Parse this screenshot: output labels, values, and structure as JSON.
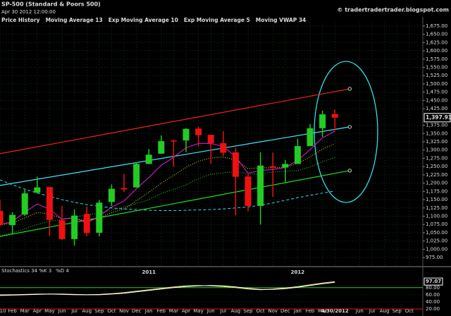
{
  "chart_data": {
    "type": "candlestick",
    "title": "SP-500 (Standard & Poors 500)",
    "subtitle": "Apr 30 2012 12:00:00",
    "credit": "© tradertradertrader.blogspot.com",
    "legend": [
      {
        "name": "Price History",
        "color": "#ffffff"
      },
      {
        "name": "Moving Average 13",
        "color": "#22dd22"
      },
      {
        "name": "Exp Moving Average 10",
        "color": "#e8e020"
      },
      {
        "name": "Exp Moving Average 5",
        "color": "#e020e0"
      },
      {
        "name": "Moving VWAP 34",
        "color": "#30e0f0"
      }
    ],
    "x_labels": [
      "10",
      "Feb",
      "Mar",
      "Apr",
      "May",
      "Jun",
      "Jul",
      "Aug",
      "Sep",
      "Oct",
      "Nov",
      "Dec",
      "Jan",
      "Feb",
      "Mar",
      "Apr",
      "May",
      "Jun",
      "Jul",
      "Aug",
      "Sep",
      "Oct",
      "Nov",
      "Dec",
      "Jan",
      "Feb",
      "Mar",
      "4/30/2012",
      null,
      "Jun",
      "Jul",
      "Aug",
      "Sep",
      "Oct"
    ],
    "year_labels": [
      {
        "category_index": 12,
        "label": "2011"
      },
      {
        "category_index": 24,
        "label": "2012"
      }
    ],
    "up_color": "#22cc22",
    "down_color": "#ee1111",
    "open": [
      1116,
      1073,
      1105,
      1171,
      1188,
      1088,
      1031,
      1107,
      1050,
      1143,
      1185,
      1187,
      1258,
      1289,
      1329,
      1329,
      1365,
      1346,
      1321,
      1293,
      1220,
      1131,
      1251,
      1247,
      1258,
      1312,
      1366,
      1409
    ],
    "high": [
      1150,
      1112,
      1180,
      1220,
      1188,
      1131,
      1120,
      1129,
      1149,
      1196,
      1228,
      1263,
      1303,
      1344,
      1332,
      1366,
      1371,
      1346,
      1357,
      1307,
      1230,
      1293,
      1292,
      1270,
      1334,
      1378,
      1419,
      1422
    ],
    "low": [
      1071,
      1045,
      1101,
      1170,
      1040,
      1028,
      1011,
      1040,
      1039,
      1131,
      1173,
      1187,
      1257,
      1289,
      1249,
      1294,
      1311,
      1258,
      1282,
      1102,
      1115,
      1075,
      1159,
      1203,
      1258,
      1312,
      1340,
      1358
    ],
    "close": [
      1074,
      1104,
      1169,
      1187,
      1089,
      1031,
      1102,
      1049,
      1141,
      1183,
      1181,
      1258,
      1286,
      1327,
      1326,
      1364,
      1345,
      1321,
      1292,
      1219,
      1131,
      1253,
      1247,
      1258,
      1312,
      1366,
      1408,
      1398
    ],
    "series": [
      {
        "name": "Moving Average 13",
        "color": "#22dd22",
        "dash": "1,2",
        "values": [
          1040,
          1050,
          1062,
          1075,
          1085,
          1090,
          1098,
          1103,
          1110,
          1118,
          1128,
          1138,
          1150,
          1169,
          1181,
          1195,
          1214,
          1227,
          1231,
          1235,
          1228,
          1228,
          1234,
          1236,
          1238,
          1249,
          1265,
          1278
        ]
      },
      {
        "name": "Exp Moving Average 10",
        "color": "#e8e020",
        "dash": "1,2",
        "values": [
          1074,
          1079,
          1095,
          1111,
          1107,
          1092,
          1094,
          1085,
          1095,
          1111,
          1122,
          1147,
          1172,
          1200,
          1223,
          1248,
          1266,
          1276,
          1279,
          1270,
          1244,
          1246,
          1246,
          1248,
          1260,
          1279,
          1303,
          1319
        ]
      },
      {
        "name": "Exp Moving Average 5",
        "color": "#e020e0",
        "dash": "",
        "values": [
          1074,
          1084,
          1112,
          1137,
          1121,
          1091,
          1095,
          1080,
          1100,
          1128,
          1146,
          1183,
          1217,
          1254,
          1278,
          1307,
          1320,
          1320,
          1311,
          1280,
          1230,
          1238,
          1241,
          1247,
          1269,
          1301,
          1337,
          1357
        ]
      },
      {
        "name": "Moving VWAP 34",
        "color": "#30e0f0",
        "dash": "4,3",
        "values": [
          1210,
          1195,
          1182,
          1170,
          1160,
          1150,
          1142,
          1135,
          1130,
          1125,
          1122,
          1120,
          1118,
          1117,
          1117,
          1118,
          1119,
          1120,
          1122,
          1125,
          1128,
          1133,
          1140,
          1148,
          1156,
          1163,
          1170,
          1176
        ]
      }
    ],
    "trendlines": [
      {
        "color": "#ee2222",
        "points": [
          [
            0,
            1289
          ],
          [
            28.2,
            1485
          ]
        ]
      },
      {
        "color": "#40e8ff",
        "points": [
          [
            0,
            1193
          ],
          [
            28.2,
            1370
          ]
        ]
      },
      {
        "color": "#22dd22",
        "points": [
          [
            0,
            1039
          ],
          [
            28.2,
            1238
          ]
        ]
      }
    ],
    "ylim": [
      962.5,
      1687.5
    ],
    "yticks": [
      {
        "value": 975,
        "label": "975.00"
      },
      {
        "value": 1000,
        "label": "1,000.00"
      },
      {
        "value": 1025,
        "label": "1,025.00"
      },
      {
        "value": 1050,
        "label": "1,050.00"
      },
      {
        "value": 1075,
        "label": "1,075.00"
      },
      {
        "value": 1100,
        "label": "1,100.00"
      },
      {
        "value": 1125,
        "label": "1,125.00"
      },
      {
        "value": 1150,
        "label": "1,150.00"
      },
      {
        "value": 1175,
        "label": "1,175.00"
      },
      {
        "value": 1200,
        "label": "1,200.00"
      },
      {
        "value": 1225,
        "label": "1,225.00"
      },
      {
        "value": 1250,
        "label": "1,250.00"
      },
      {
        "value": 1275,
        "label": "1,275.00"
      },
      {
        "value": 1300,
        "label": "1,300.00"
      },
      {
        "value": 1325,
        "label": "1,325.00"
      },
      {
        "value": 1350,
        "label": "1,350.00"
      },
      {
        "value": 1375,
        "label": "1,375.00"
      },
      {
        "value": 1425,
        "label": "1,425.00"
      },
      {
        "value": 1450,
        "label": "1,450.00"
      },
      {
        "value": 1475,
        "label": "1,475.00"
      },
      {
        "value": 1500,
        "label": "1,500.00"
      },
      {
        "value": 1525,
        "label": "1,525.00"
      },
      {
        "value": 1550,
        "label": "1,550.00"
      },
      {
        "value": 1575,
        "label": "1,575.00"
      },
      {
        "value": 1600,
        "label": "1,600.00"
      },
      {
        "value": 1625,
        "label": "1,625.00"
      },
      {
        "value": 1650,
        "label": "1,650.00"
      },
      {
        "value": 1675,
        "label": "1,675.00"
      }
    ],
    "last_price": {
      "value": 1397.91,
      "label": "1,397.91"
    },
    "grid": true,
    "stochastics": {
      "title": "Stochastics 34 %K 3",
      "title_d": "%D 4",
      "ylim": [
        0,
        100
      ],
      "yticks": [
        {
          "value": 20,
          "label": "20.00",
          "color": "#ee1111"
        },
        {
          "value": 40,
          "label": "40.00"
        },
        {
          "value": 60,
          "label": "60.00"
        },
        {
          "value": 80,
          "label": "80.00",
          "color": "#22cc22"
        }
      ],
      "last": {
        "value": 97.07,
        "label": "97.07"
      },
      "series": [
        {
          "name": "%K",
          "color": "#e8e060",
          "values": [
            60,
            60,
            61,
            62,
            62,
            61,
            60,
            60,
            61,
            63,
            66,
            70,
            74,
            78,
            82,
            85,
            86,
            85,
            83,
            80,
            76,
            74,
            76,
            79,
            83,
            88,
            93,
            97
          ]
        },
        {
          "name": "%D",
          "color": "#ffffff",
          "values": [
            58,
            59,
            60,
            61,
            62,
            62,
            61,
            60,
            60,
            62,
            64,
            68,
            72,
            76,
            80,
            83,
            85,
            86,
            85,
            82,
            78,
            75,
            75,
            77,
            81,
            86,
            91,
            95
          ]
        }
      ]
    }
  }
}
